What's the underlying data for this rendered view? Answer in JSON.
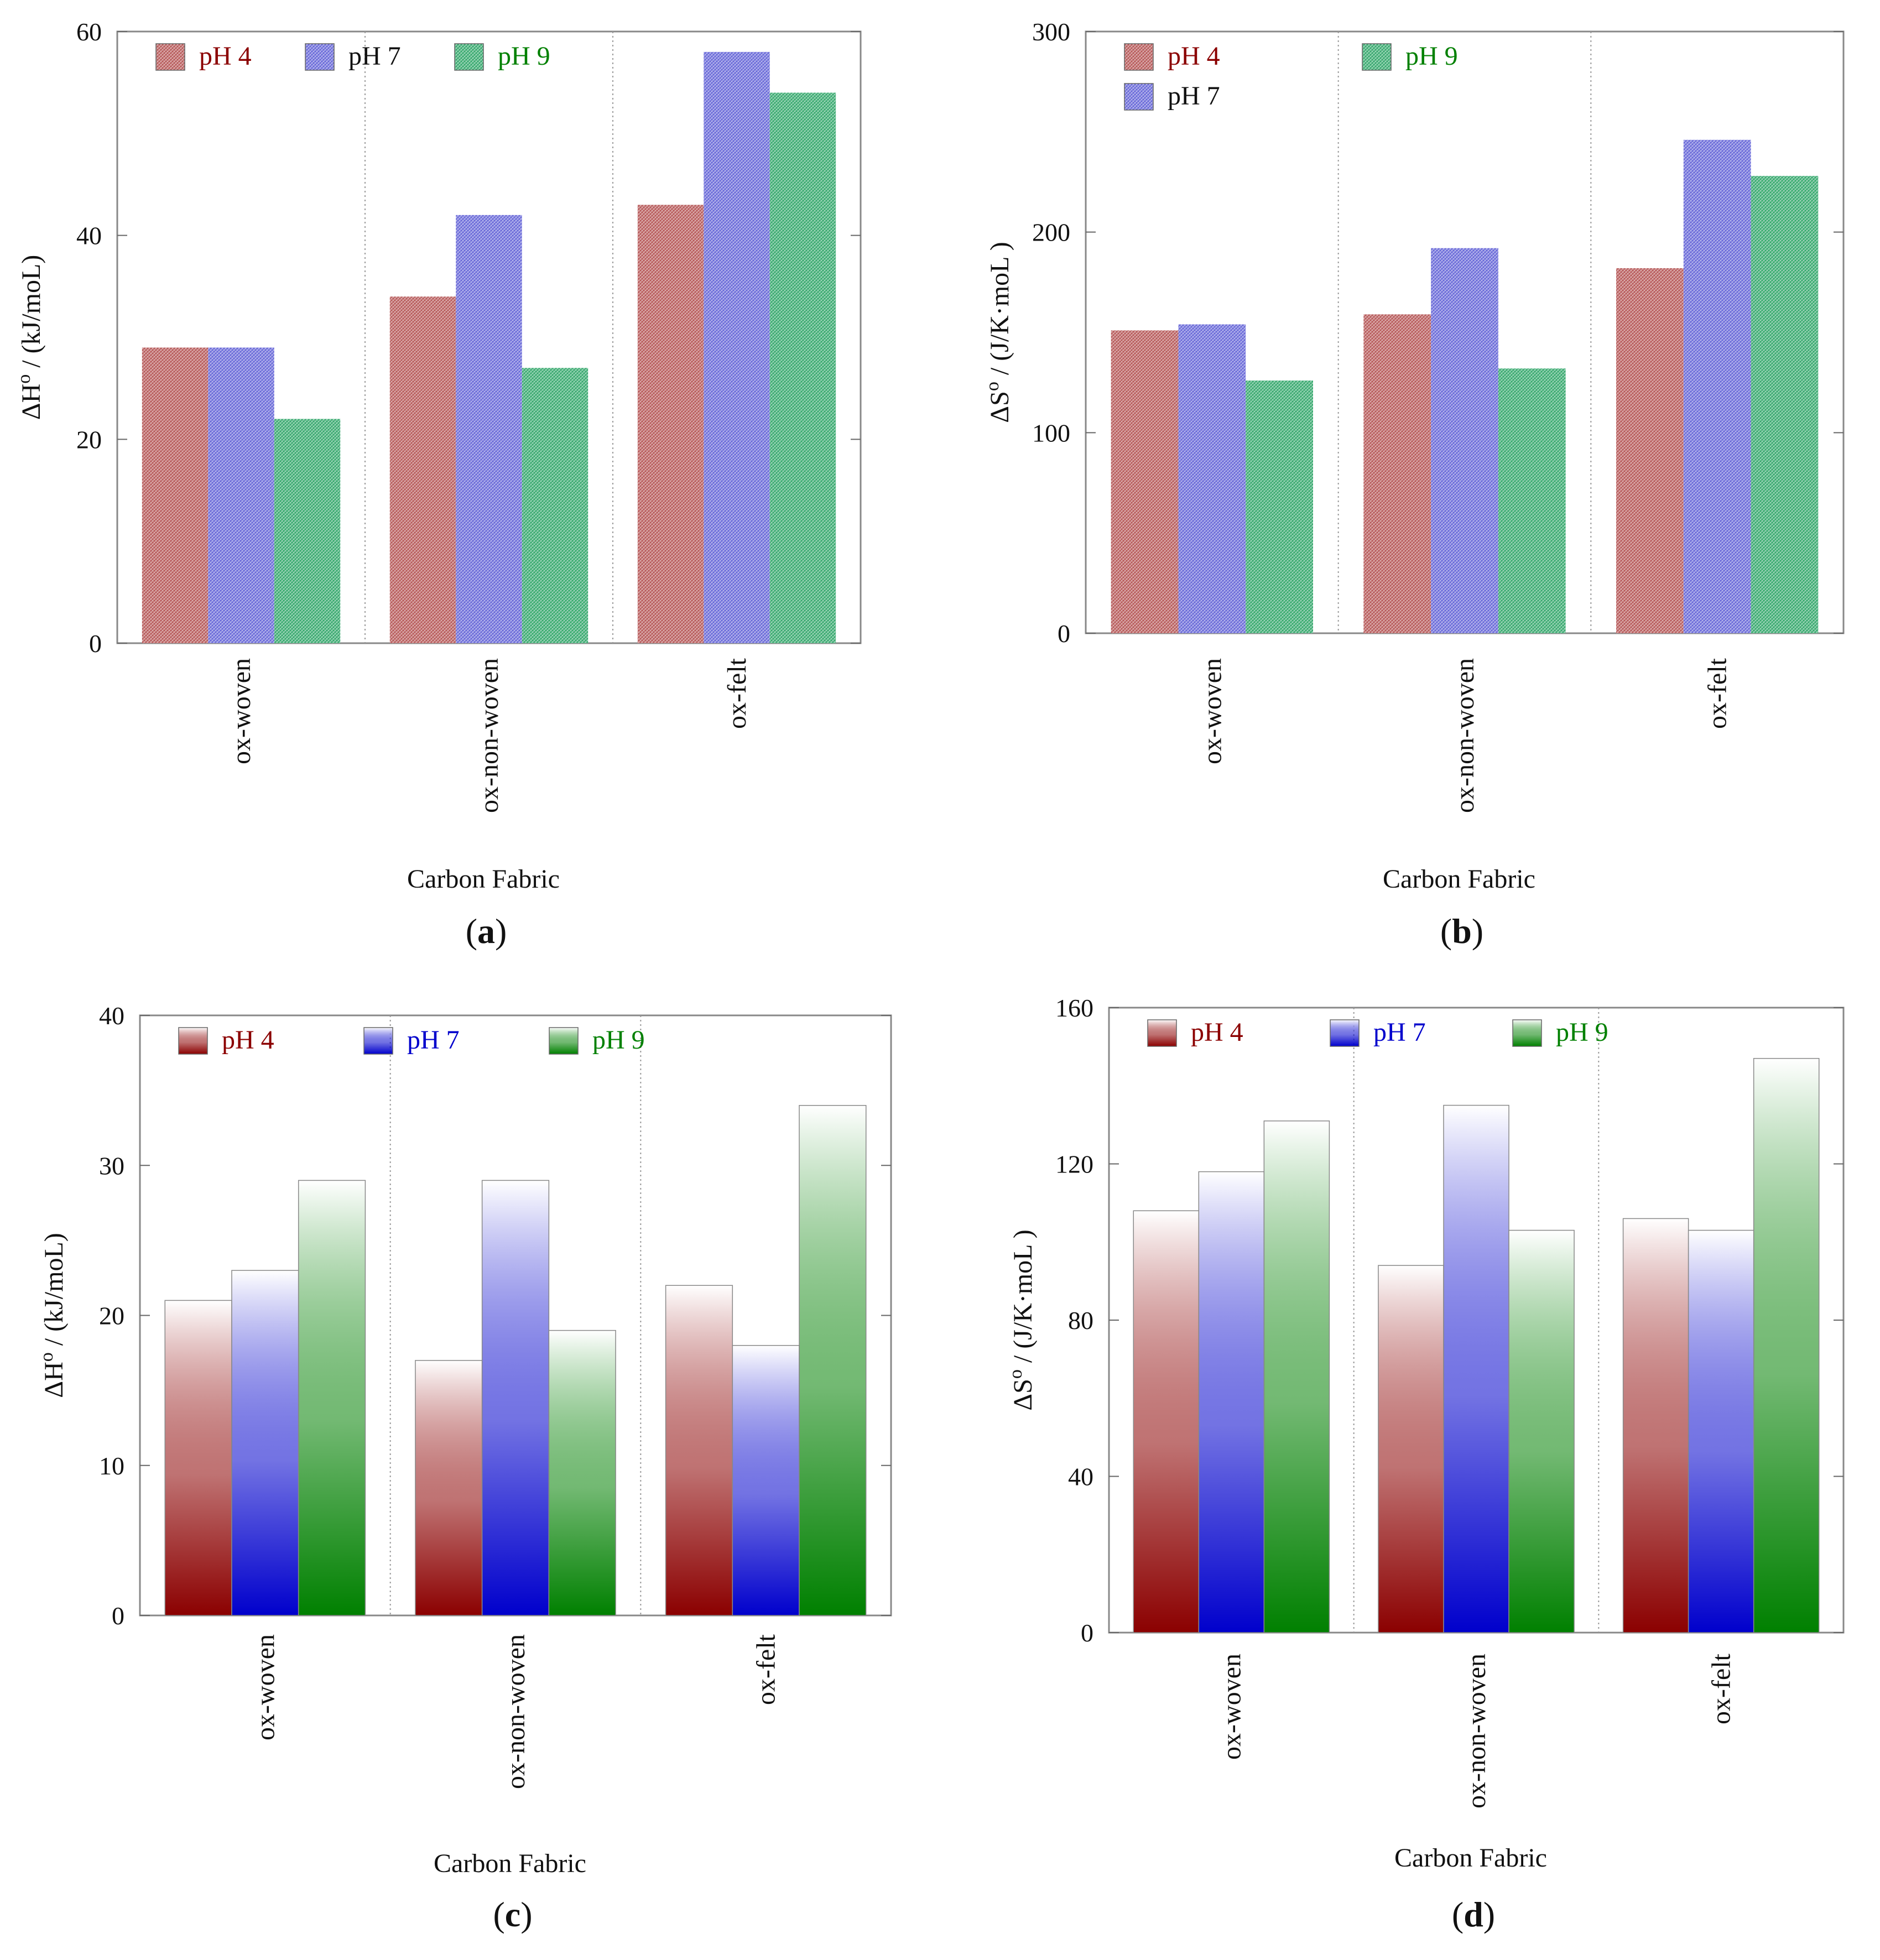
{
  "chart_data": [
    {
      "type": "bar",
      "panel": "a",
      "style": "hatched",
      "title": "",
      "categories": [
        "ox-woven",
        "ox-non-woven",
        "ox-felt"
      ],
      "series": [
        {
          "name": "pH 4",
          "color": "#b85c5c",
          "label_color": "#8b0000",
          "values": [
            29,
            34,
            43
          ]
        },
        {
          "name": "pH 7",
          "color": "#6b6bd9",
          "label_color": "#111111",
          "values": [
            29,
            42,
            58
          ]
        },
        {
          "name": "pH 9",
          "color": "#3aaa70",
          "label_color": "#008000",
          "values": [
            22,
            27,
            54
          ]
        }
      ],
      "xlabel": "Carbon Fabric",
      "ylabel": "ΔH",
      "ylabel_sup": "o",
      "ylabel_unit": " / (kJ/moL)",
      "ylim": [
        0,
        60
      ],
      "yticks": [
        0,
        20,
        40,
        60
      ],
      "legend": "top-left",
      "grid": "vertical dotted separators"
    },
    {
      "type": "bar",
      "panel": "b",
      "style": "hatched",
      "title": "",
      "categories": [
        "ox-woven",
        "ox-non-woven",
        "ox-felt"
      ],
      "series": [
        {
          "name": "pH 4",
          "color": "#b85c5c",
          "label_color": "#8b0000",
          "values": [
            151,
            159,
            182
          ]
        },
        {
          "name": "pH 7",
          "color": "#6b6bd9",
          "label_color": "#111111",
          "values": [
            154,
            192,
            246
          ]
        },
        {
          "name": "pH 9",
          "color": "#3aaa70",
          "label_color": "#008000",
          "values": [
            126,
            132,
            228
          ]
        }
      ],
      "xlabel": "Carbon Fabric",
      "ylabel": "ΔS",
      "ylabel_sup": "o",
      "ylabel_unit": " / (J/K·moL )",
      "ylim": [
        0,
        300
      ],
      "yticks": [
        0,
        100,
        200,
        300
      ],
      "legend": "top-left",
      "grid": "vertical dotted separators"
    },
    {
      "type": "bar",
      "panel": "c",
      "style": "gradient",
      "title": "",
      "categories": [
        "ox-woven",
        "ox-non-woven",
        "ox-felt"
      ],
      "series": [
        {
          "name": "pH 4",
          "color": "#8b0000",
          "label_color": "#8b0000",
          "values": [
            21,
            17,
            22
          ]
        },
        {
          "name": "pH 7",
          "color": "#0000cc",
          "label_color": "#0000cc",
          "values": [
            23,
            29,
            18
          ]
        },
        {
          "name": "pH 9",
          "color": "#008000",
          "label_color": "#008000",
          "values": [
            29,
            19,
            34
          ]
        }
      ],
      "xlabel": "Carbon Fabric",
      "ylabel": "ΔH",
      "ylabel_sup": "o",
      "ylabel_unit": " / (kJ/moL)",
      "ylim": [
        0,
        40
      ],
      "yticks": [
        0,
        10,
        20,
        30,
        40
      ],
      "legend": "top-left",
      "grid": "vertical dotted separators"
    },
    {
      "type": "bar",
      "panel": "d",
      "style": "gradient",
      "title": "",
      "categories": [
        "ox-woven",
        "ox-non-woven",
        "ox-felt"
      ],
      "series": [
        {
          "name": "pH 4",
          "color": "#8b0000",
          "label_color": "#8b0000",
          "values": [
            108,
            94,
            106
          ]
        },
        {
          "name": "pH 7",
          "color": "#0000cc",
          "label_color": "#0000cc",
          "values": [
            118,
            135,
            103
          ]
        },
        {
          "name": "pH 9",
          "color": "#008000",
          "label_color": "#008000",
          "values": [
            131,
            103,
            147
          ]
        }
      ],
      "xlabel": "Carbon Fabric",
      "ylabel": "ΔS",
      "ylabel_sup": "o",
      "ylabel_unit": " / (J/K·moL )",
      "ylim": [
        0,
        160
      ],
      "yticks": [
        0,
        40,
        80,
        120,
        160
      ],
      "legend": "top-left",
      "grid": "vertical dotted separators"
    }
  ],
  "panel_labels": [
    "a",
    "b",
    "c",
    "d"
  ]
}
